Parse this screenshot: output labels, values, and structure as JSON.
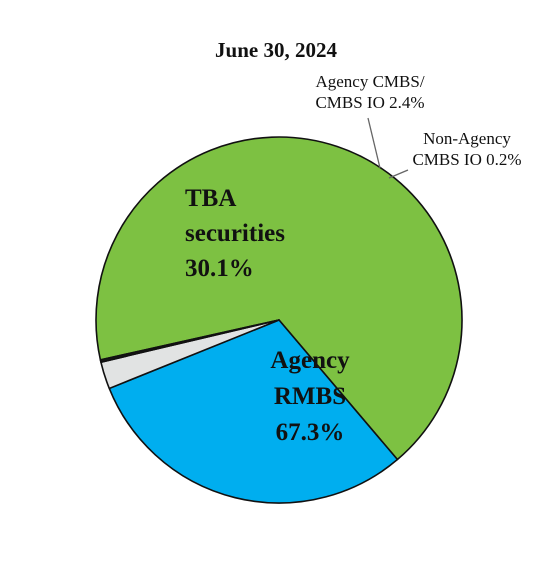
{
  "chart_data": {
    "type": "pie",
    "title": "June 30, 2024",
    "slices": [
      {
        "name": "Agency RMBS",
        "value": 67.3,
        "value_label": "67.3%",
        "color": "#7dc142",
        "label_lines": [
          "Agency",
          "RMBS",
          "67.3%"
        ]
      },
      {
        "name": "TBA securities",
        "value": 30.1,
        "value_label": "30.1%",
        "color": "#00aeef",
        "label_lines": [
          "TBA",
          "securities",
          "30.1%"
        ]
      },
      {
        "name": "Agency CMBS/ CMBS IO",
        "value": 2.4,
        "value_label": "2.4%",
        "color": "#e1e3e3",
        "label_lines": [
          "Agency CMBS/",
          "CMBS IO 2.4%"
        ]
      },
      {
        "name": "Non-Agency CMBS IO",
        "value": 0.2,
        "value_label": "0.2%",
        "color": "#1a1a1a",
        "label_lines": [
          "Non-Agency",
          "CMBS IO 0.2%"
        ]
      }
    ]
  }
}
